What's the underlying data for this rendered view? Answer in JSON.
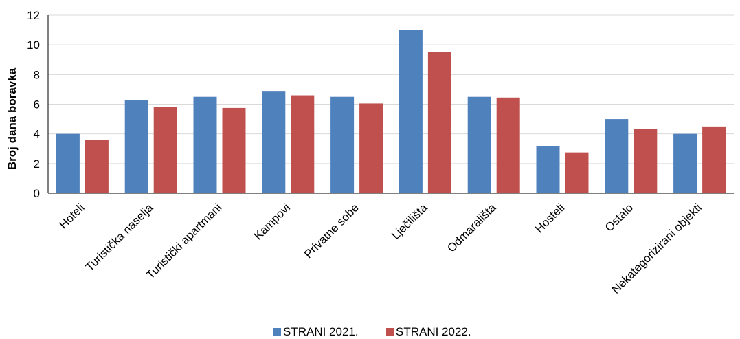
{
  "chart_data": {
    "type": "bar",
    "title": "",
    "xlabel": "",
    "ylabel": "Broj dana boravka",
    "ylim": [
      0,
      12
    ],
    "yticks": [
      0,
      2,
      4,
      6,
      8,
      10,
      12
    ],
    "grid": true,
    "legend_position": "bottom",
    "categories": [
      "Hoteli",
      "Turistička naselja",
      "Turistički apartmani",
      "Kampovi",
      "Privatne sobe",
      "Lječilišta",
      "Odmarališta",
      "Hosteli",
      "Ostalo",
      "Nekategorizirani objekti"
    ],
    "series": [
      {
        "name": "STRANI 2021.",
        "color": "#4f81bd",
        "values": [
          4.0,
          6.3,
          6.5,
          6.85,
          6.5,
          11.0,
          6.5,
          3.15,
          5.0,
          4.0
        ]
      },
      {
        "name": "STRANI 2022.",
        "color": "#c0504d",
        "values": [
          3.6,
          5.8,
          5.75,
          6.6,
          6.05,
          9.5,
          6.45,
          2.75,
          4.35,
          4.5
        ]
      }
    ]
  }
}
